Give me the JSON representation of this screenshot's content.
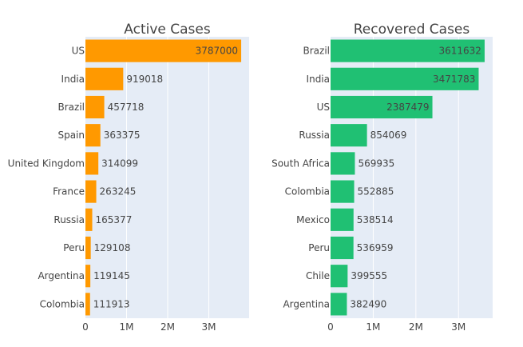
{
  "chart_data": [
    {
      "type": "bar",
      "orientation": "horizontal",
      "title": "Active Cases",
      "categories": [
        "US",
        "India",
        "Brazil",
        "Spain",
        "United Kingdom",
        "France",
        "Russia",
        "Peru",
        "Argentina",
        "Colombia"
      ],
      "values": [
        3787000,
        919018,
        457718,
        363375,
        314099,
        263245,
        165377,
        129108,
        119145,
        111913
      ],
      "value_labels": [
        "3787000",
        "919018",
        "457718",
        "363375",
        "314099",
        "263245",
        "165377",
        "129108",
        "119145",
        "111913"
      ],
      "xlim": [
        0,
        3980000
      ],
      "xticks": [
        0,
        1000000,
        2000000,
        3000000
      ],
      "xtick_labels": [
        "0",
        "1M",
        "2M",
        "3M"
      ],
      "color": "#ff9900",
      "grid": true
    },
    {
      "type": "bar",
      "orientation": "horizontal",
      "title": "Recovered Cases",
      "categories": [
        "Brazil",
        "India",
        "US",
        "Russia",
        "South Africa",
        "Colombia",
        "Mexico",
        "Peru",
        "Chile",
        "Argentina"
      ],
      "values": [
        3611632,
        3471783,
        2387479,
        854069,
        569935,
        552885,
        538514,
        536959,
        399555,
        382490
      ],
      "value_labels": [
        "3611632",
        "3471783",
        "2387479",
        "854069",
        "569935",
        "552885",
        "538514",
        "536959",
        "399555",
        "382490"
      ],
      "xlim": [
        0,
        3800000
      ],
      "xticks": [
        0,
        1000000,
        2000000,
        3000000
      ],
      "xtick_labels": [
        "0",
        "1M",
        "2M",
        "3M"
      ],
      "color": "#20c073",
      "grid": true
    }
  ]
}
